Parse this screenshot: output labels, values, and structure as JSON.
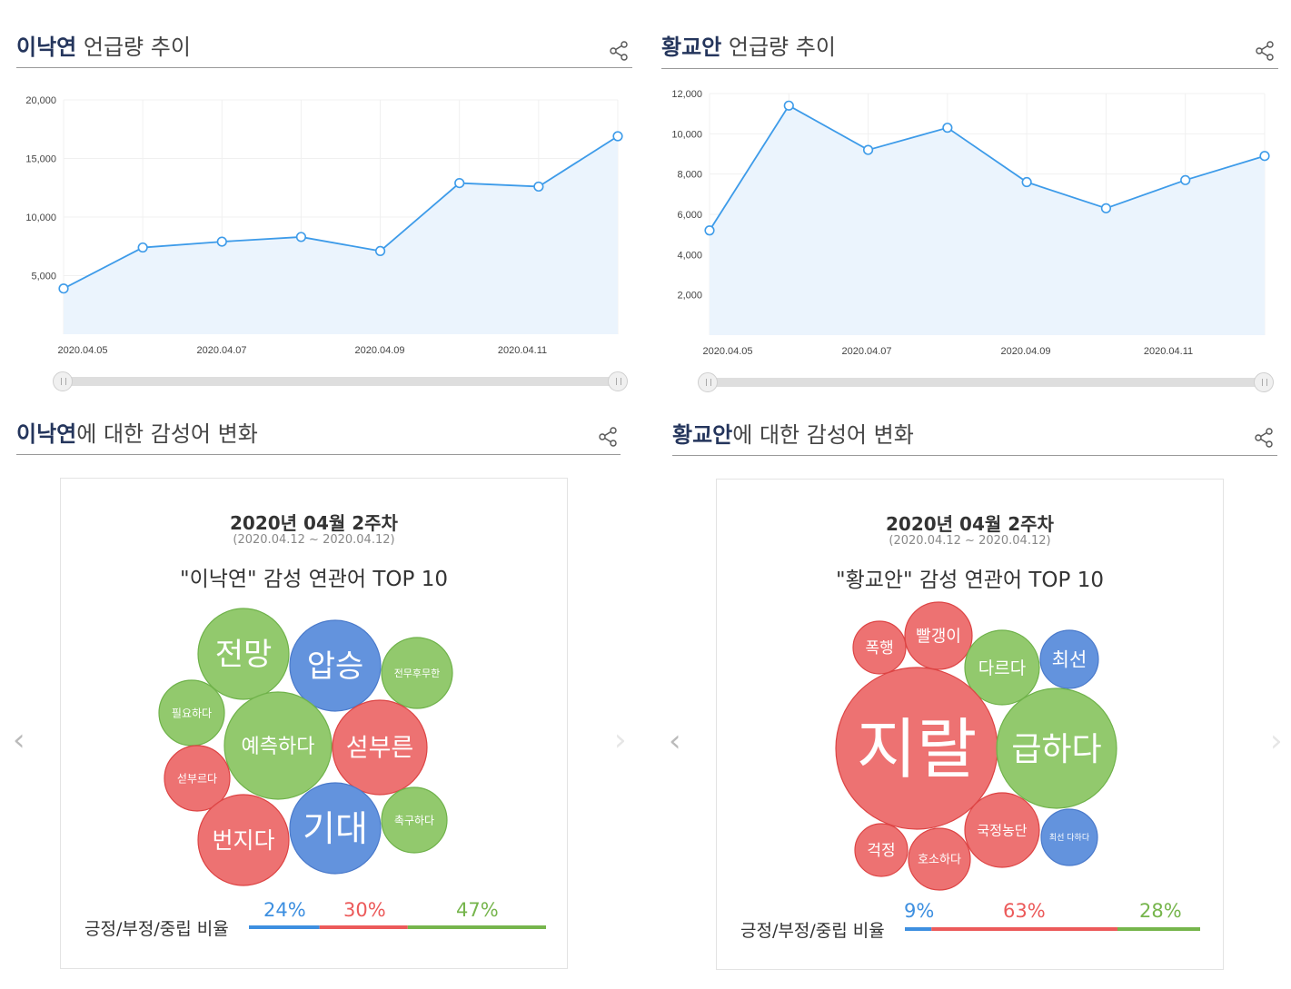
{
  "left_trend": {
    "title_name": "이낙연",
    "title_rest": " 언급량 추이",
    "chart_data": {
      "type": "line",
      "title": "이낙연 언급량 추이",
      "x": [
        "2020.04.05",
        "2020.04.06",
        "2020.04.07",
        "2020.04.08",
        "2020.04.09",
        "2020.04.10",
        "2020.04.11",
        "2020.04.12"
      ],
      "values": [
        3900,
        7400,
        7900,
        8300,
        7100,
        12900,
        12600,
        16900
      ],
      "ylim": [
        0,
        20000
      ],
      "yticks": [
        5000,
        10000,
        15000,
        20000
      ],
      "ytick_labels": [
        "5,000",
        "10,000",
        "15,000",
        "20,000"
      ],
      "xtick_labels": [
        "2020.04.05",
        "2020.04.07",
        "2020.04.09",
        "2020.04.11"
      ],
      "xtick_index": [
        0,
        2,
        4,
        6
      ]
    }
  },
  "right_trend": {
    "title_name": "황교안",
    "title_rest": " 언급량 추이",
    "chart_data": {
      "type": "line",
      "title": "황교안 언급량 추이",
      "x": [
        "2020.04.05",
        "2020.04.06",
        "2020.04.07",
        "2020.04.08",
        "2020.04.09",
        "2020.04.10",
        "2020.04.11",
        "2020.04.12"
      ],
      "values": [
        5200,
        11400,
        9200,
        10300,
        7600,
        6300,
        7700,
        8900
      ],
      "ylim": [
        0,
        12000
      ],
      "yticks": [
        2000,
        4000,
        6000,
        8000,
        10000,
        12000
      ],
      "ytick_labels": [
        "2,000",
        "4,000",
        "6,000",
        "8,000",
        "10,000",
        "12,000"
      ],
      "xtick_labels": [
        "2020.04.05",
        "2020.04.07",
        "2020.04.09",
        "2020.04.11"
      ],
      "xtick_index": [
        0,
        2,
        4,
        6
      ]
    }
  },
  "left_sentiment": {
    "title_name": "이낙연",
    "title_rest": "에 대한 감성어 변화",
    "week": "2020년 04월 2주차",
    "range": "(2020.04.12 ~ 2020.04.12)",
    "top_title": "\"이낙연\" 감성 연관어 TOP 10",
    "ratio_label": "긍정/부정/중립 비율",
    "ratio": {
      "positive": "24%",
      "negative": "30%",
      "neutral": "47%",
      "positive_val": 24,
      "negative_val": 30,
      "neutral_val": 47
    },
    "words": [
      {
        "text": "전망",
        "sentiment": "neutral"
      },
      {
        "text": "압승",
        "sentiment": "positive"
      },
      {
        "text": "전무후무한",
        "sentiment": "neutral"
      },
      {
        "text": "필요하다",
        "sentiment": "neutral"
      },
      {
        "text": "예측하다",
        "sentiment": "neutral"
      },
      {
        "text": "섣부른",
        "sentiment": "negative"
      },
      {
        "text": "섣부르다",
        "sentiment": "negative"
      },
      {
        "text": "번지다",
        "sentiment": "negative"
      },
      {
        "text": "기대",
        "sentiment": "positive"
      },
      {
        "text": "촉구하다",
        "sentiment": "neutral"
      }
    ]
  },
  "right_sentiment": {
    "title_name": "황교안",
    "title_rest": "에 대한 감성어 변화",
    "week": "2020년 04월 2주차",
    "range": "(2020.04.12 ~ 2020.04.12)",
    "top_title": "\"황교안\" 감성 연관어 TOP 10",
    "ratio_label": "긍정/부정/중립 비율",
    "ratio": {
      "positive": "9%",
      "negative": "63%",
      "neutral": "28%",
      "positive_val": 9,
      "negative_val": 63,
      "neutral_val": 28
    },
    "words": [
      {
        "text": "폭행",
        "sentiment": "negative"
      },
      {
        "text": "빨갱이",
        "sentiment": "negative"
      },
      {
        "text": "다르다",
        "sentiment": "neutral"
      },
      {
        "text": "최선",
        "sentiment": "positive"
      },
      {
        "text": "지랄",
        "sentiment": "negative"
      },
      {
        "text": "급하다",
        "sentiment": "neutral"
      },
      {
        "text": "국정농단",
        "sentiment": "negative"
      },
      {
        "text": "최선 다하다",
        "sentiment": "positive"
      },
      {
        "text": "걱정",
        "sentiment": "negative"
      },
      {
        "text": "호소하다",
        "sentiment": "negative"
      }
    ]
  },
  "colors": {
    "line": "#3d9be9",
    "area": "#ebf4fd",
    "positive": "#5b8ddb",
    "negative": "#ec6a6a",
    "neutral": "#8cc665",
    "positive_text": "#3d8fe0",
    "negative_text": "#ec5a5a",
    "neutral_text": "#76b54c"
  },
  "icons": {
    "share": "share-icon",
    "prev": "chevron-left-icon",
    "next": "chevron-right-icon"
  },
  "arrows": {
    "prev": "‹",
    "next": "›"
  }
}
